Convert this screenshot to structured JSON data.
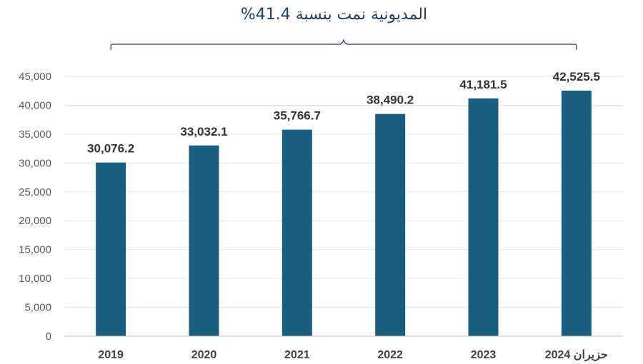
{
  "annotation": "المديونية نمت بنسبة 41.4%",
  "colors": {
    "bar": "#175e80",
    "grid": "#e6e6e6",
    "axis": "#bfbfbf",
    "bracket": "#1f3b73"
  },
  "chart_data": {
    "type": "bar",
    "title": "",
    "xlabel": "",
    "ylabel": "",
    "categories": [
      "2019",
      "2020",
      "2021",
      "2022",
      "2023",
      "حزيران 2024"
    ],
    "values": [
      30076.2,
      33032.1,
      35766.7,
      38490.2,
      41181.5,
      42525.5
    ],
    "value_labels": [
      "30,076.2",
      "33,032.1",
      "35,766.7",
      "38,490.2",
      "41,181.5",
      "42,525.5"
    ],
    "ylim": [
      0,
      45000
    ],
    "yticks": [
      0,
      5000,
      10000,
      15000,
      20000,
      25000,
      30000,
      35000,
      40000,
      45000
    ],
    "ytick_labels": [
      "0",
      "5,000",
      "10,000",
      "15,000",
      "20,000",
      "25,000",
      "30,000",
      "35,000",
      "40,000",
      "45,000"
    ],
    "grid": true,
    "legend": "none"
  }
}
